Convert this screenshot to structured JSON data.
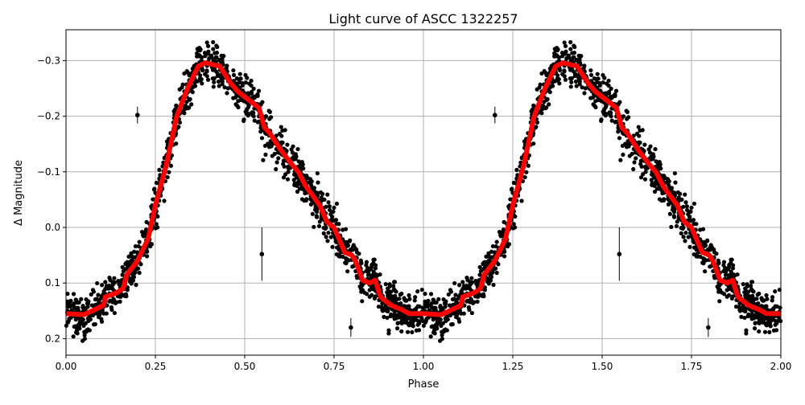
{
  "chart_data": {
    "type": "scatter",
    "title": "Light curve of ASCC 1322257",
    "xlabel": "Phase",
    "ylabel": "Δ Magnitude",
    "xlim": [
      0,
      2
    ],
    "ylim": [
      0.229,
      -0.356
    ],
    "y_inverted": true,
    "grid": true,
    "x_ticks": [
      0,
      0.25,
      0.5,
      0.75,
      1.0,
      1.25,
      1.5,
      1.75,
      2.0
    ],
    "x_tick_labels": [
      "0.00",
      "0.25",
      "0.50",
      "0.75",
      "1.00",
      "1.25",
      "1.50",
      "1.75",
      "2.00"
    ],
    "y_ticks": [
      -0.3,
      -0.2,
      -0.1,
      0.0,
      0.1,
      0.2
    ],
    "y_tick_labels": [
      "−0.3",
      "−0.2",
      "−0.1",
      "0.0",
      "0.1",
      "0.2"
    ],
    "colors": {
      "points": "#000000",
      "model": "#ff0000",
      "grid": "#b0b0b0"
    },
    "model_curve_one_period": [
      [
        0.0,
        0.155
      ],
      [
        0.05,
        0.157
      ],
      [
        0.08,
        0.148
      ],
      [
        0.105,
        0.14
      ],
      [
        0.11,
        0.125
      ],
      [
        0.14,
        0.118
      ],
      [
        0.16,
        0.11
      ],
      [
        0.17,
        0.085
      ],
      [
        0.2,
        0.06
      ],
      [
        0.23,
        0.02
      ],
      [
        0.25,
        -0.04
      ],
      [
        0.28,
        -0.11
      ],
      [
        0.31,
        -0.2
      ],
      [
        0.34,
        -0.25
      ],
      [
        0.37,
        -0.29
      ],
      [
        0.39,
        -0.296
      ],
      [
        0.43,
        -0.29
      ],
      [
        0.46,
        -0.26
      ],
      [
        0.48,
        -0.245
      ],
      [
        0.52,
        -0.225
      ],
      [
        0.54,
        -0.215
      ],
      [
        0.555,
        -0.18
      ],
      [
        0.57,
        -0.17
      ],
      [
        0.6,
        -0.14
      ],
      [
        0.63,
        -0.115
      ],
      [
        0.65,
        -0.1
      ],
      [
        0.67,
        -0.075
      ],
      [
        0.71,
        -0.04
      ],
      [
        0.73,
        -0.01
      ],
      [
        0.75,
        0.0
      ],
      [
        0.78,
        0.045
      ],
      [
        0.8,
        0.05
      ],
      [
        0.81,
        0.06
      ],
      [
        0.83,
        0.095
      ],
      [
        0.85,
        0.1
      ],
      [
        0.865,
        0.095
      ],
      [
        0.88,
        0.125
      ],
      [
        0.91,
        0.14
      ],
      [
        0.94,
        0.148
      ],
      [
        0.96,
        0.155
      ],
      [
        1.0,
        0.155
      ]
    ],
    "outliers": [
      {
        "phase": 0.2,
        "mag": -0.202,
        "err": 0.015
      },
      {
        "phase": 0.548,
        "mag": 0.048,
        "err": 0.048
      },
      {
        "phase": 0.797,
        "mag": 0.18,
        "err": 0.017
      },
      {
        "phase": 1.2,
        "mag": -0.202,
        "err": 0.015
      },
      {
        "phase": 1.548,
        "mag": 0.048,
        "err": 0.048
      },
      {
        "phase": 1.797,
        "mag": 0.18,
        "err": 0.017
      }
    ]
  }
}
